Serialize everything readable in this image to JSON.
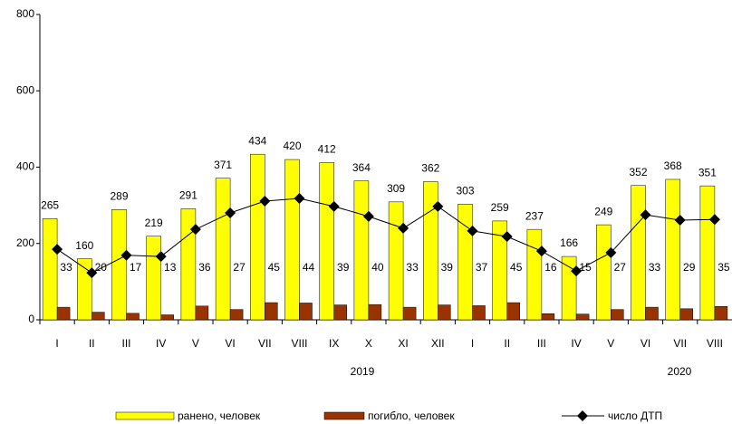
{
  "chart_data": {
    "type": "bar",
    "categories": [
      "I",
      "II",
      "III",
      "IV",
      "V",
      "VI",
      "VII",
      "VIII",
      "IX",
      "X",
      "XI",
      "XII",
      "I",
      "II",
      "III",
      "IV",
      "V",
      "VI",
      "VII",
      "VIII"
    ],
    "year_labels": [
      "2019",
      "2020"
    ],
    "series": [
      {
        "name": "ранено, человек",
        "color": "#ffff00",
        "values": [
          265,
          160,
          289,
          219,
          291,
          371,
          434,
          420,
          412,
          364,
          309,
          362,
          303,
          259,
          237,
          166,
          249,
          352,
          368,
          351
        ]
      },
      {
        "name": "погибло, человек",
        "color": "#993300",
        "values": [
          33,
          20,
          17,
          13,
          36,
          27,
          45,
          44,
          39,
          40,
          33,
          39,
          37,
          45,
          16,
          15,
          27,
          33,
          29,
          35
        ]
      },
      {
        "name": "число ДТП",
        "type": "line",
        "color": "#000000",
        "values": [
          185,
          123,
          169,
          166,
          237,
          280,
          311,
          318,
          297,
          271,
          240,
          297,
          233,
          218,
          180,
          128,
          176,
          275,
          261,
          263
        ]
      }
    ],
    "ylim": [
      0,
      800
    ],
    "yticks": [
      0,
      200,
      400,
      600,
      800
    ]
  }
}
